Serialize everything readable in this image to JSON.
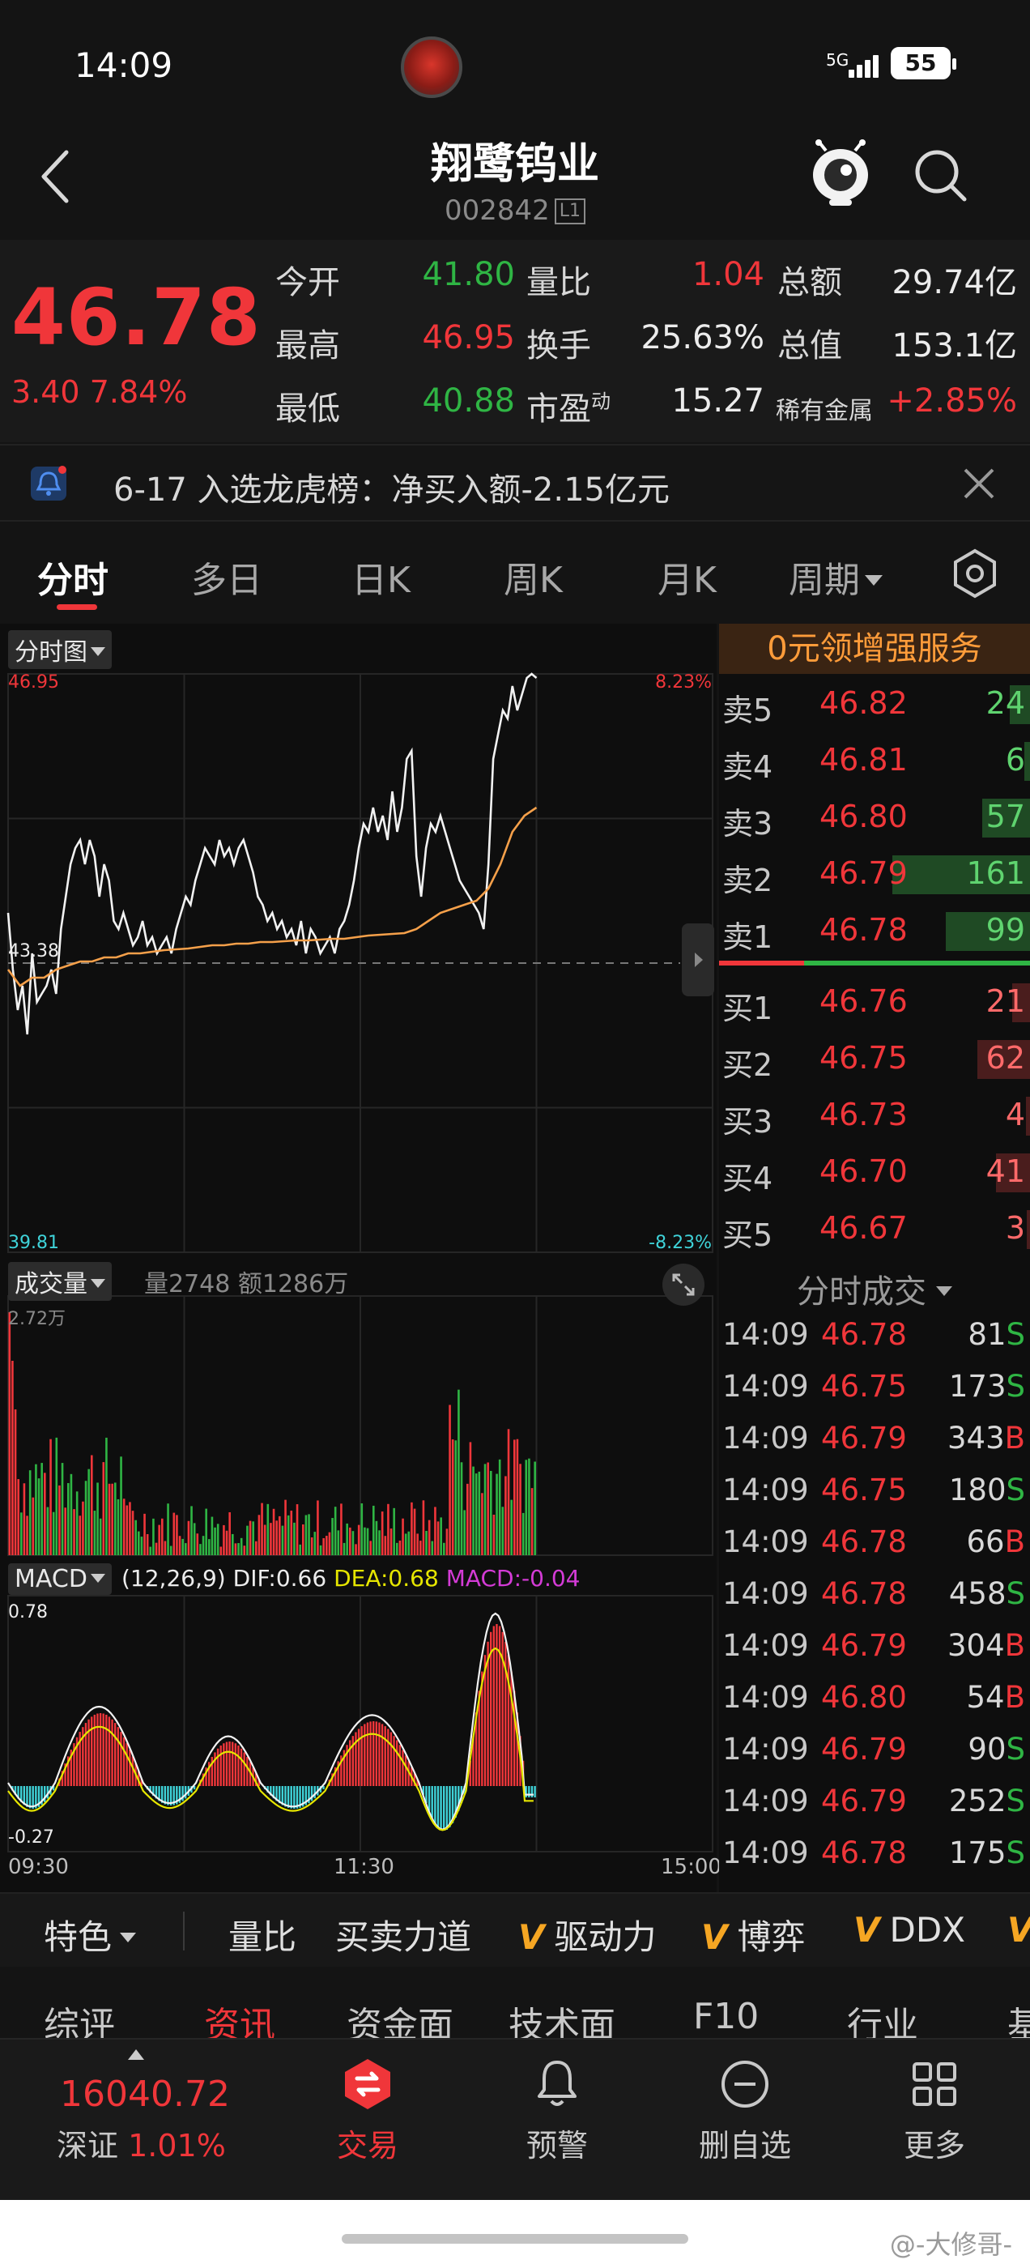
{
  "status_bar": {
    "time": "14:09",
    "network": "5G",
    "battery": "55"
  },
  "header": {
    "name": "翔鹭钨业",
    "code": "002842",
    "level": "L1"
  },
  "quote": {
    "price": "46.78",
    "change": "3.40",
    "change_pct": "7.84%",
    "rows": [
      [
        {
          "label": "今开",
          "value": "41.80",
          "color": "green"
        },
        {
          "label": "量比",
          "value": "1.04",
          "color": "red"
        },
        {
          "label": "总额",
          "value": "29.74亿",
          "color": "white"
        }
      ],
      [
        {
          "label": "最高",
          "value": "46.95",
          "color": "red"
        },
        {
          "label": "换手",
          "value": "25.63%",
          "color": "white"
        },
        {
          "label": "总值",
          "value": "153.1亿",
          "color": "white"
        }
      ],
      [
        {
          "label": "最低",
          "value": "40.88",
          "color": "green"
        },
        {
          "label": "市盈",
          "sup": "动",
          "value": "15.27",
          "color": "white"
        },
        {
          "label": "稀有金属",
          "value": "+2.85%",
          "color": "red"
        }
      ]
    ]
  },
  "notice": {
    "text": "6-17 入选龙虎榜：净买入额-2.15亿元"
  },
  "tabs": {
    "items": [
      "分时",
      "多日",
      "日K",
      "周K",
      "月K",
      "周期"
    ],
    "active": 0
  },
  "chart": {
    "title": "分时图",
    "price_high": "46.95",
    "price_mid": "43.38",
    "price_low": "39.81",
    "pct_high": "8.23%",
    "pct_low": "-8.23%",
    "volume_label": "成交量",
    "volume_info": "量2748  额1286万",
    "volume_max": "2.72万",
    "macd_label": "MACD",
    "macd_params": "(12,26,9)",
    "dif": "DIF:0.66",
    "dea": "DEA:0.68",
    "macd": "MACD:-0.04",
    "macd_max": "0.78",
    "macd_min": "-0.27",
    "time_labels": [
      "09:30",
      "11:30",
      "15:00"
    ]
  },
  "chart_data": {
    "type": "line",
    "title": "分时图",
    "ylim": [
      39.81,
      46.95
    ],
    "series": [
      {
        "name": "price",
        "values": [
          44.0,
          43.3,
          42.8,
          43.1,
          42.5,
          43.5,
          42.9,
          43.0,
          43.1,
          43.3,
          43.0,
          43.8,
          44.2,
          44.6,
          44.8,
          44.9,
          44.6,
          44.9,
          44.7,
          44.2,
          44.6,
          44.4,
          43.9,
          43.8,
          44.0,
          43.8,
          43.6,
          43.7,
          43.9,
          43.6,
          43.7,
          43.5,
          43.6,
          43.7,
          43.5,
          43.8,
          44.0,
          44.2,
          44.1,
          44.4,
          44.6,
          44.8,
          44.7,
          44.6,
          44.9,
          44.7,
          44.8,
          44.6,
          44.8,
          44.9,
          44.7,
          44.5,
          44.2,
          44.1,
          43.9,
          44.0,
          43.8,
          43.9,
          43.7,
          43.8,
          43.6,
          43.9,
          43.5,
          43.8,
          43.7,
          43.5,
          43.6,
          43.7,
          43.5,
          43.8,
          43.9,
          44.1,
          44.4,
          44.8,
          45.1,
          45.0,
          45.3,
          45.0,
          45.2,
          44.9,
          45.5,
          45.0,
          45.3,
          45.9,
          46.0,
          44.7,
          44.2,
          44.8,
          45.1,
          45.0,
          45.2,
          45.0,
          44.8,
          44.6,
          44.4,
          44.3,
          44.2,
          44.1,
          44.0,
          43.8,
          44.6,
          45.9,
          46.2,
          46.5,
          46.4,
          46.8,
          46.5,
          46.7,
          46.9,
          46.95,
          46.9
        ]
      },
      {
        "name": "avg",
        "values": [
          43.3,
          43.1,
          43.2,
          43.2,
          43.3,
          43.35,
          43.4,
          43.4,
          43.45,
          43.45,
          43.5,
          43.5,
          43.52,
          43.54,
          43.55,
          43.56,
          43.58,
          43.6,
          43.6,
          43.62,
          43.62,
          43.64,
          43.64,
          43.65,
          43.66,
          43.66,
          43.67,
          43.68,
          43.68,
          43.7,
          43.72,
          43.73,
          43.74,
          43.75,
          43.8,
          43.9,
          44.0,
          44.05,
          44.1,
          44.15,
          44.3,
          44.6,
          45.0,
          45.2,
          45.3
        ]
      }
    ]
  },
  "order_book": {
    "banner": "0元领增强服务",
    "asks": [
      {
        "label": "卖5",
        "price": "46.82",
        "vol": "24",
        "depth": 0.15
      },
      {
        "label": "卖4",
        "price": "46.81",
        "vol": "6",
        "depth": 0.04
      },
      {
        "label": "卖3",
        "price": "46.80",
        "vol": "57",
        "depth": 0.35
      },
      {
        "label": "卖2",
        "price": "46.79",
        "vol": "161",
        "depth": 1.0
      },
      {
        "label": "卖1",
        "price": "46.78",
        "vol": "99",
        "depth": 0.61
      }
    ],
    "bids": [
      {
        "label": "买1",
        "price": "46.76",
        "vol": "21",
        "depth": 0.13
      },
      {
        "label": "买2",
        "price": "46.75",
        "vol": "62",
        "depth": 0.38
      },
      {
        "label": "买3",
        "price": "46.73",
        "vol": "4",
        "depth": 0.03
      },
      {
        "label": "买4",
        "price": "46.70",
        "vol": "41",
        "depth": 0.25
      },
      {
        "label": "买5",
        "price": "46.67",
        "vol": "3",
        "depth": 0.02
      }
    ]
  },
  "trades": {
    "title": "分时成交",
    "rows": [
      {
        "time": "14:09",
        "price": "46.78",
        "vol": "81",
        "side": "S"
      },
      {
        "time": "14:09",
        "price": "46.75",
        "vol": "173",
        "side": "S"
      },
      {
        "time": "14:09",
        "price": "46.79",
        "vol": "343",
        "side": "B"
      },
      {
        "time": "14:09",
        "price": "46.75",
        "vol": "180",
        "side": "S"
      },
      {
        "time": "14:09",
        "price": "46.78",
        "vol": "66",
        "side": "B"
      },
      {
        "time": "14:09",
        "price": "46.78",
        "vol": "458",
        "side": "S"
      },
      {
        "time": "14:09",
        "price": "46.79",
        "vol": "304",
        "side": "B"
      },
      {
        "time": "14:09",
        "price": "46.80",
        "vol": "54",
        "side": "B"
      },
      {
        "time": "14:09",
        "price": "46.79",
        "vol": "90",
        "side": "S"
      },
      {
        "time": "14:09",
        "price": "46.79",
        "vol": "252",
        "side": "S"
      },
      {
        "time": "14:09",
        "price": "46.78",
        "vol": "175",
        "side": "S"
      }
    ]
  },
  "indicators": {
    "special": "特色",
    "items": [
      "量比",
      "买卖力道",
      "驱动力",
      "博弈",
      "DDX",
      "V"
    ],
    "v_mark": "V"
  },
  "info_tabs": {
    "items": [
      "综评",
      "资讯",
      "资金面",
      "技术面",
      "F10",
      "行业",
      "基"
    ],
    "active": 1
  },
  "bottom_nav": {
    "index_value": "16040.72",
    "index_name": "深证",
    "index_change": "1.01%",
    "items": [
      "交易",
      "预警",
      "删自选",
      "更多"
    ],
    "active": 0
  },
  "watermark": "@-大修哥-",
  "colors": {
    "red": "#f0363a",
    "green": "#2fb544",
    "avg_line": "#f5a04a",
    "orange": "#ff9c3a",
    "dea": "#e6e600",
    "macd": "#d43bd6",
    "cyan": "#3fd3d9"
  }
}
